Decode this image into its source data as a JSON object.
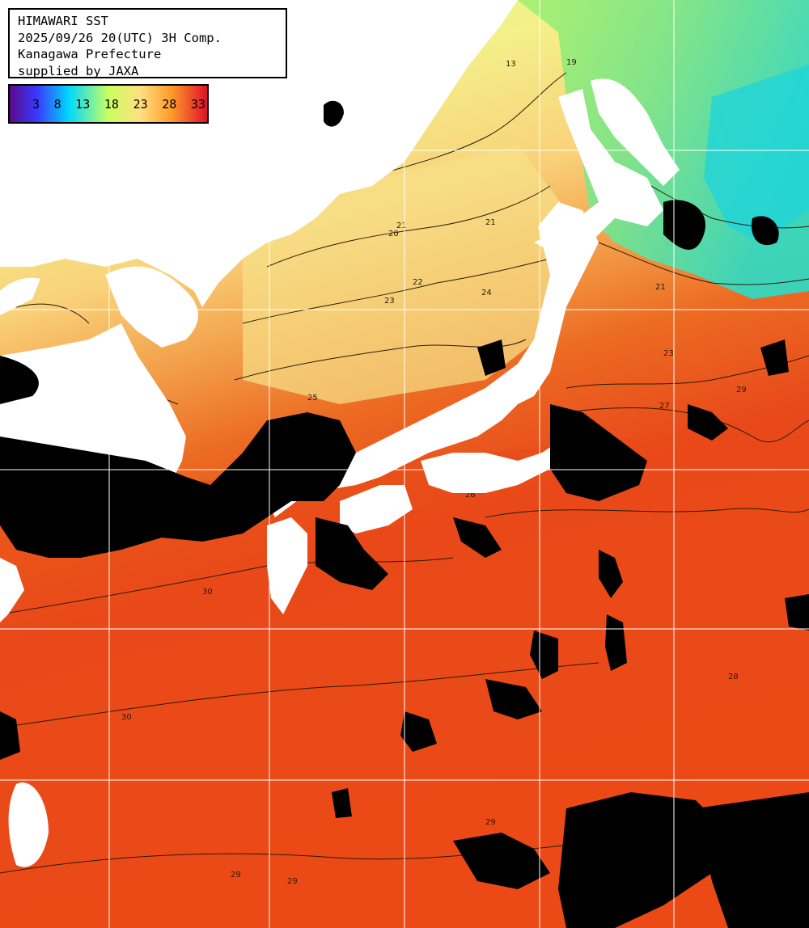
{
  "title_box": {
    "line1": "HIMAWARI SST",
    "line2": "2025/09/26 20(UTC) 3H Comp.",
    "line3": "Kanagawa Prefecture",
    "line4": "supplied by JAXA"
  },
  "legend": {
    "ticks": [
      "3",
      "8",
      "13",
      "18",
      "23",
      "28",
      "33"
    ],
    "colors": [
      "#5a0a8a",
      "#3a3aff",
      "#00d8ff",
      "#c8ff60",
      "#ffe080",
      "#ff9a2a",
      "#e0102a"
    ]
  },
  "contour_labels": [
    "13",
    "19",
    "20",
    "21",
    "22",
    "23",
    "24",
    "25",
    "26",
    "27",
    "28",
    "29",
    "30"
  ],
  "colors": {
    "land": "#ffffff",
    "cloud": "#000000",
    "graticule": "#ffffff",
    "contour": "#2a1a0a"
  }
}
